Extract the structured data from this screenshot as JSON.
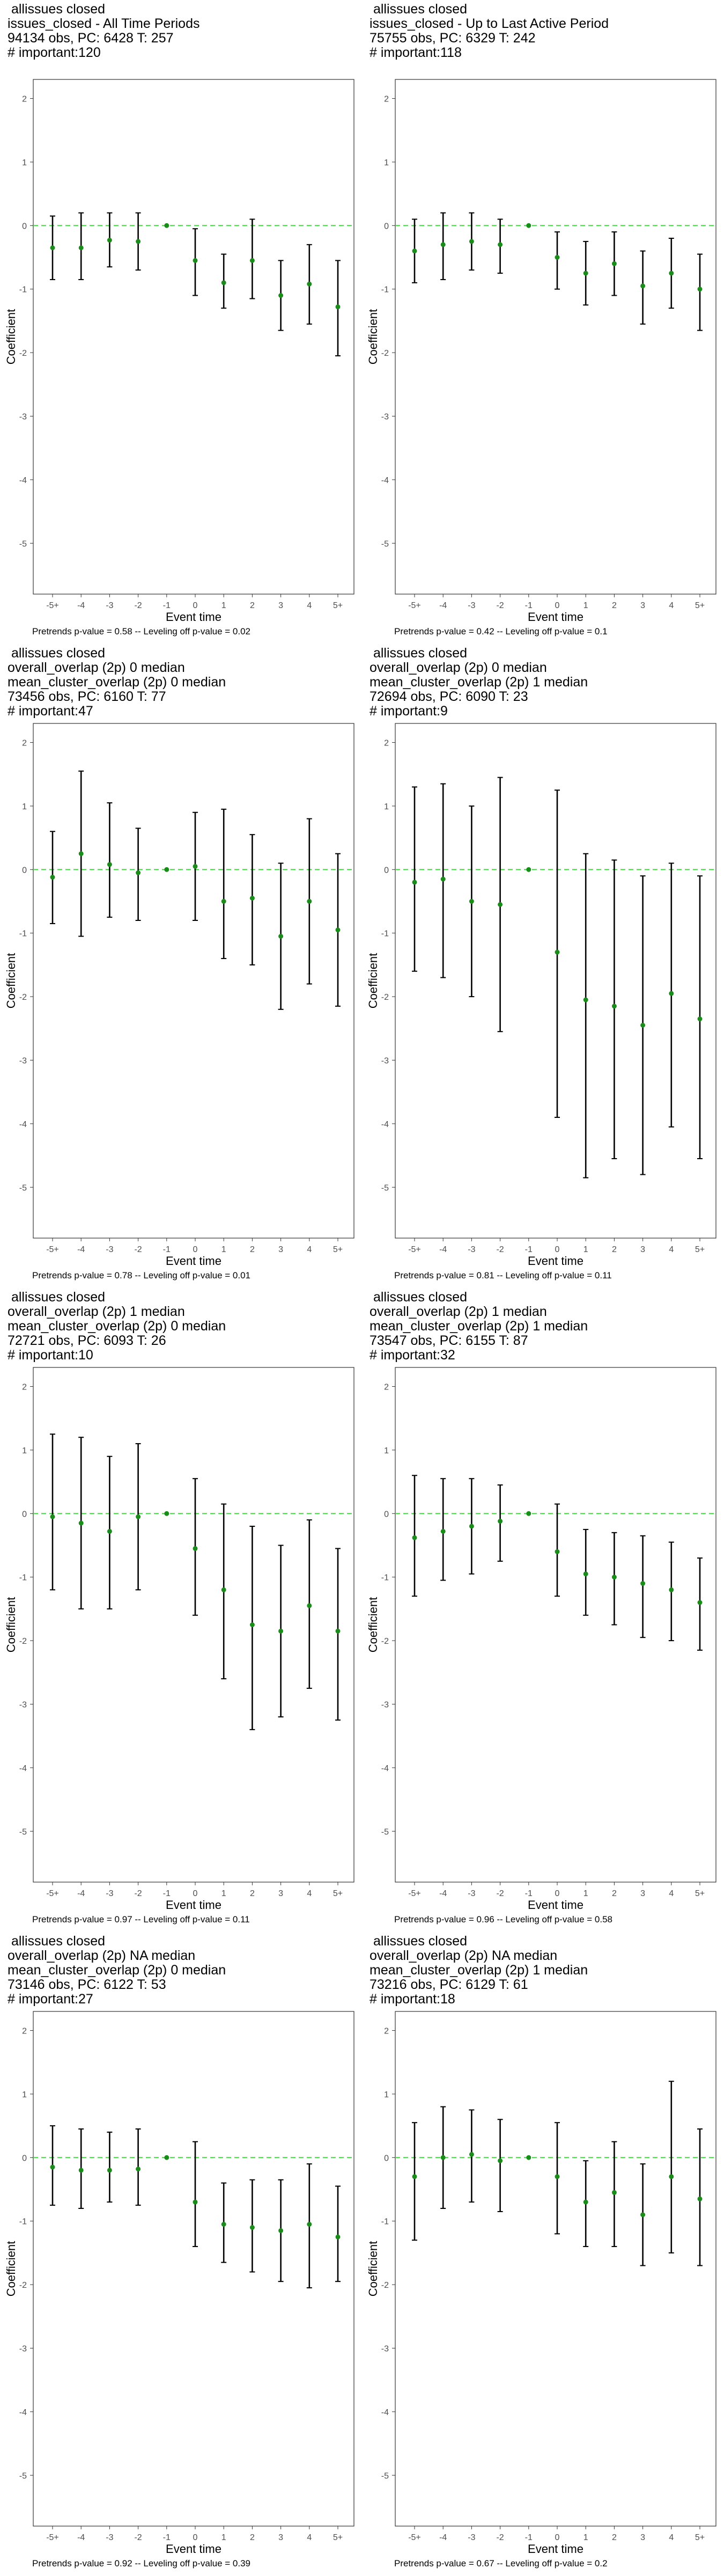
{
  "colors": {
    "point": "#1a8c1a",
    "zero_line": "#44dd44",
    "error_bar": "#000000",
    "panel_border": "#333333"
  },
  "chart_data": [
    {
      "type": "scatter",
      "titles": [
        "allissues closed",
        "issues_closed - All Time Periods",
        "94134 obs, PC: 6428 T: 257",
        "# important:120"
      ],
      "xlabel": "Event time",
      "ylabel": "Coefficient",
      "categories": [
        "-5+",
        "-4",
        "-3",
        "-2",
        "-1",
        "0",
        "1",
        "2",
        "3",
        "4",
        "5+"
      ],
      "ylim": [
        -5.8,
        2.3
      ],
      "yticks": [
        2,
        1,
        0,
        -1,
        -2,
        -3,
        -4,
        -5
      ],
      "reference_line": 0,
      "values": [
        -0.35,
        -0.35,
        -0.23,
        -0.25,
        0.0,
        -0.55,
        -0.9,
        -0.55,
        -1.1,
        -0.92,
        -1.28
      ],
      "ci": [
        [
          -0.85,
          0.15
        ],
        [
          -0.85,
          0.2
        ],
        [
          -0.65,
          0.2
        ],
        [
          -0.7,
          0.2
        ],
        [
          0.0,
          0.0
        ],
        [
          -1.1,
          -0.05
        ],
        [
          -1.3,
          -0.45
        ],
        [
          -1.15,
          0.1
        ],
        [
          -1.65,
          -0.55
        ],
        [
          -1.55,
          -0.3
        ],
        [
          -2.05,
          -0.55
        ]
      ],
      "caption": "Pretrends p-value = 0.58 -- Leveling off p-value = 0.02"
    },
    {
      "type": "scatter",
      "titles": [
        "allissues closed",
        "issues_closed - Up to Last Active Period",
        "75755 obs, PC: 6329 T: 242",
        "# important:118"
      ],
      "xlabel": "Event time",
      "ylabel": "Coefficient",
      "categories": [
        "-5+",
        "-4",
        "-3",
        "-2",
        "-1",
        "0",
        "1",
        "2",
        "3",
        "4",
        "5+"
      ],
      "ylim": [
        -5.8,
        2.3
      ],
      "yticks": [
        2,
        1,
        0,
        -1,
        -2,
        -3,
        -4,
        -5
      ],
      "reference_line": 0,
      "values": [
        -0.4,
        -0.3,
        -0.25,
        -0.3,
        0.0,
        -0.5,
        -0.75,
        -0.6,
        -0.95,
        -0.75,
        -1.0
      ],
      "ci": [
        [
          -0.9,
          0.1
        ],
        [
          -0.85,
          0.2
        ],
        [
          -0.7,
          0.2
        ],
        [
          -0.75,
          0.1
        ],
        [
          0.0,
          0.0
        ],
        [
          -1.0,
          -0.1
        ],
        [
          -1.25,
          -0.25
        ],
        [
          -1.1,
          -0.1
        ],
        [
          -1.55,
          -0.4
        ],
        [
          -1.3,
          -0.2
        ],
        [
          -1.65,
          -0.45
        ]
      ],
      "caption": "Pretrends p-value = 0.42 -- Leveling off p-value = 0.1"
    },
    {
      "type": "scatter",
      "titles": [
        "allissues closed",
        "overall_overlap (2p) 0 median",
        "mean_cluster_overlap (2p) 0 median",
        "73456 obs, PC: 6160 T: 77",
        "# important:47"
      ],
      "xlabel": "Event time",
      "ylabel": "Coefficient",
      "categories": [
        "-5+",
        "-4",
        "-3",
        "-2",
        "-1",
        "0",
        "1",
        "2",
        "3",
        "4",
        "5+"
      ],
      "ylim": [
        -5.8,
        2.3
      ],
      "yticks": [
        2,
        1,
        0,
        -1,
        -2,
        -3,
        -4,
        -5
      ],
      "reference_line": 0,
      "values": [
        -0.12,
        0.25,
        0.08,
        -0.05,
        0.0,
        0.05,
        -0.5,
        -0.45,
        -1.05,
        -0.5,
        -0.95
      ],
      "ci": [
        [
          -0.85,
          0.6
        ],
        [
          -1.05,
          1.55
        ],
        [
          -0.75,
          1.05
        ],
        [
          -0.8,
          0.65
        ],
        [
          0.0,
          0.0
        ],
        [
          -0.8,
          0.9
        ],
        [
          -1.4,
          0.95
        ],
        [
          -1.5,
          0.55
        ],
        [
          -2.2,
          0.1
        ],
        [
          -1.8,
          0.8
        ],
        [
          -2.15,
          0.25
        ]
      ],
      "caption": "Pretrends p-value = 0.78 -- Leveling off p-value = 0.01"
    },
    {
      "type": "scatter",
      "titles": [
        "allissues closed",
        "overall_overlap (2p) 0 median",
        "mean_cluster_overlap (2p) 1 median",
        "72694 obs, PC: 6090 T: 23",
        "# important:9"
      ],
      "xlabel": "Event time",
      "ylabel": "Coefficient",
      "categories": [
        "-5+",
        "-4",
        "-3",
        "-2",
        "-1",
        "0",
        "1",
        "2",
        "3",
        "4",
        "5+"
      ],
      "ylim": [
        -5.8,
        2.3
      ],
      "yticks": [
        2,
        1,
        0,
        -1,
        -2,
        -3,
        -4,
        -5
      ],
      "reference_line": 0,
      "values": [
        -0.2,
        -0.15,
        -0.5,
        -0.55,
        0.0,
        -1.3,
        -2.05,
        -2.15,
        -2.45,
        -1.95,
        -2.35
      ],
      "ci": [
        [
          -1.6,
          1.3
        ],
        [
          -1.7,
          1.35
        ],
        [
          -2.0,
          1.0
        ],
        [
          -2.55,
          1.45
        ],
        [
          0.0,
          0.0
        ],
        [
          -3.9,
          1.25
        ],
        [
          -4.85,
          0.25
        ],
        [
          -4.55,
          0.15
        ],
        [
          -4.8,
          -0.1
        ],
        [
          -4.05,
          0.1
        ],
        [
          -4.55,
          -0.1
        ]
      ],
      "caption": "Pretrends p-value = 0.81 -- Leveling off p-value = 0.11"
    },
    {
      "type": "scatter",
      "titles": [
        "allissues closed",
        "overall_overlap (2p) 1 median",
        "mean_cluster_overlap (2p) 0 median",
        "72721 obs, PC: 6093 T: 26",
        "# important:10"
      ],
      "xlabel": "Event time",
      "ylabel": "Coefficient",
      "categories": [
        "-5+",
        "-4",
        "-3",
        "-2",
        "-1",
        "0",
        "1",
        "2",
        "3",
        "4",
        "5+"
      ],
      "ylim": [
        -5.8,
        2.3
      ],
      "yticks": [
        2,
        1,
        0,
        -1,
        -2,
        -3,
        -4,
        -5
      ],
      "reference_line": 0,
      "values": [
        -0.05,
        -0.15,
        -0.28,
        -0.05,
        0.0,
        -0.55,
        -1.2,
        -1.75,
        -1.85,
        -1.45,
        -1.85
      ],
      "ci": [
        [
          -1.2,
          1.25
        ],
        [
          -1.5,
          1.2
        ],
        [
          -1.5,
          0.9
        ],
        [
          -1.2,
          1.1
        ],
        [
          0.0,
          0.0
        ],
        [
          -1.6,
          0.55
        ],
        [
          -2.6,
          0.15
        ],
        [
          -3.4,
          -0.2
        ],
        [
          -3.2,
          -0.5
        ],
        [
          -2.75,
          -0.1
        ],
        [
          -3.25,
          -0.55
        ]
      ],
      "caption": "Pretrends p-value = 0.97 -- Leveling off p-value = 0.11"
    },
    {
      "type": "scatter",
      "titles": [
        "allissues closed",
        "overall_overlap (2p) 1 median",
        "mean_cluster_overlap (2p) 1 median",
        "73547 obs, PC: 6155 T: 87",
        "# important:32"
      ],
      "xlabel": "Event time",
      "ylabel": "Coefficient",
      "categories": [
        "-5+",
        "-4",
        "-3",
        "-2",
        "-1",
        "0",
        "1",
        "2",
        "3",
        "4",
        "5+"
      ],
      "ylim": [
        -5.8,
        2.3
      ],
      "yticks": [
        2,
        1,
        0,
        -1,
        -2,
        -3,
        -4,
        -5
      ],
      "reference_line": 0,
      "values": [
        -0.38,
        -0.28,
        -0.2,
        -0.12,
        0.0,
        -0.6,
        -0.95,
        -1.0,
        -1.1,
        -1.2,
        -1.4
      ],
      "ci": [
        [
          -1.3,
          0.6
        ],
        [
          -1.05,
          0.55
        ],
        [
          -0.95,
          0.55
        ],
        [
          -0.75,
          0.45
        ],
        [
          0.0,
          0.0
        ],
        [
          -1.3,
          0.15
        ],
        [
          -1.6,
          -0.25
        ],
        [
          -1.75,
          -0.3
        ],
        [
          -1.95,
          -0.35
        ],
        [
          -2.0,
          -0.45
        ],
        [
          -2.15,
          -0.7
        ]
      ],
      "caption": "Pretrends p-value = 0.96 -- Leveling off p-value = 0.58"
    },
    {
      "type": "scatter",
      "titles": [
        "allissues closed",
        "overall_overlap (2p) NA median",
        "mean_cluster_overlap (2p) 0 median",
        "73146 obs, PC: 6122 T: 53",
        "# important:27"
      ],
      "xlabel": "Event time",
      "ylabel": "Coefficient",
      "categories": [
        "-5+",
        "-4",
        "-3",
        "-2",
        "-1",
        "0",
        "1",
        "2",
        "3",
        "4",
        "5+"
      ],
      "ylim": [
        -5.8,
        2.3
      ],
      "yticks": [
        2,
        1,
        0,
        -1,
        -2,
        -3,
        -4,
        -5
      ],
      "reference_line": 0,
      "values": [
        -0.15,
        -0.2,
        -0.2,
        -0.18,
        0.0,
        -0.7,
        -1.05,
        -1.1,
        -1.15,
        -1.05,
        -1.25
      ],
      "ci": [
        [
          -0.75,
          0.5
        ],
        [
          -0.8,
          0.45
        ],
        [
          -0.7,
          0.4
        ],
        [
          -0.75,
          0.45
        ],
        [
          0.0,
          0.0
        ],
        [
          -1.4,
          0.25
        ],
        [
          -1.65,
          -0.4
        ],
        [
          -1.8,
          -0.35
        ],
        [
          -1.95,
          -0.35
        ],
        [
          -2.05,
          -0.1
        ],
        [
          -1.95,
          -0.45
        ]
      ],
      "caption": "Pretrends p-value = 0.92 -- Leveling off p-value = 0.39"
    },
    {
      "type": "scatter",
      "titles": [
        "allissues closed",
        "overall_overlap (2p) NA median",
        "mean_cluster_overlap (2p) 1 median",
        "73216 obs, PC: 6129 T: 61",
        "# important:18"
      ],
      "xlabel": "Event time",
      "ylabel": "Coefficient",
      "categories": [
        "-5+",
        "-4",
        "-3",
        "-2",
        "-1",
        "0",
        "1",
        "2",
        "3",
        "4",
        "5+"
      ],
      "ylim": [
        -5.8,
        2.3
      ],
      "yticks": [
        2,
        1,
        0,
        -1,
        -2,
        -3,
        -4,
        -5
      ],
      "reference_line": 0,
      "values": [
        -0.3,
        0.0,
        0.05,
        -0.05,
        0.0,
        -0.3,
        -0.7,
        -0.55,
        -0.9,
        -0.3,
        -0.65
      ],
      "ci": [
        [
          -1.3,
          0.55
        ],
        [
          -0.8,
          0.8
        ],
        [
          -0.7,
          0.75
        ],
        [
          -0.85,
          0.6
        ],
        [
          0.0,
          0.0
        ],
        [
          -1.2,
          0.55
        ],
        [
          -1.4,
          -0.05
        ],
        [
          -1.4,
          0.25
        ],
        [
          -1.7,
          -0.1
        ],
        [
          -1.5,
          1.2
        ],
        [
          -1.7,
          0.45
        ]
      ],
      "caption": "Pretrends p-value = 0.67 -- Leveling off p-value = 0.2"
    }
  ]
}
